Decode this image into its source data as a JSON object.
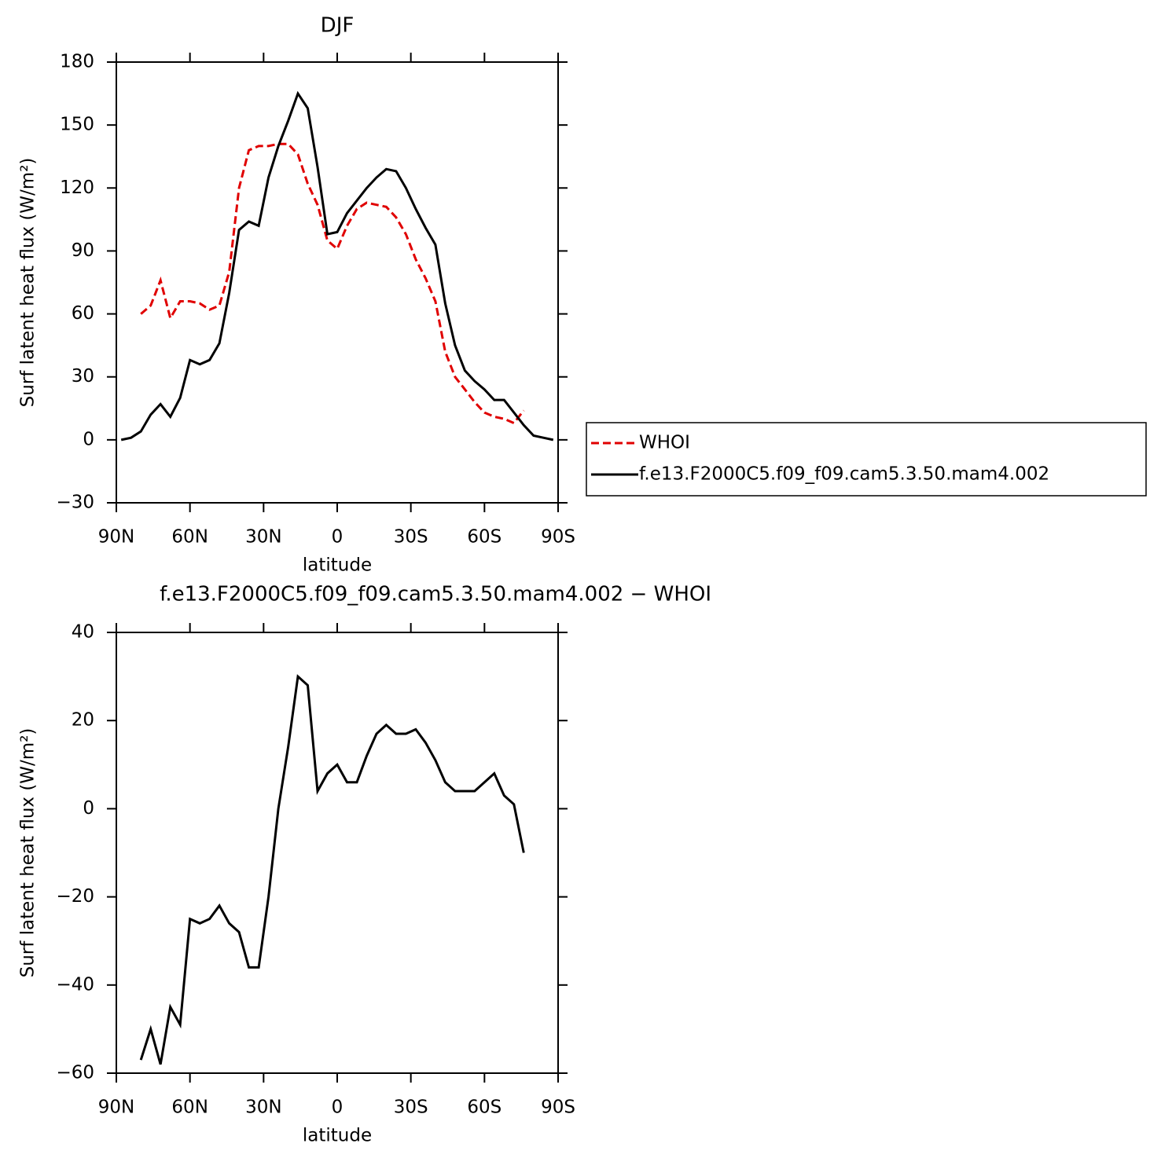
{
  "chart_data": [
    {
      "type": "line",
      "title": "DJF",
      "x_label": "latitude",
      "y_label": "Surf latent heat flux (W/m²)",
      "x": [
        88,
        84,
        80,
        76,
        72,
        68,
        64,
        60,
        56,
        52,
        48,
        44,
        40,
        36,
        32,
        28,
        24,
        20,
        16,
        12,
        8,
        4,
        0,
        -4,
        -8,
        -12,
        -16,
        -20,
        -24,
        -28,
        -32,
        -36,
        -40,
        -44,
        -48,
        -52,
        -56,
        -60,
        -64,
        -68,
        -72,
        -76,
        -80,
        -84,
        -88
      ],
      "series": [
        {
          "name": "WHOI",
          "color": "#e00000",
          "dash": true,
          "values": [
            null,
            null,
            60,
            64,
            76,
            58,
            66,
            66,
            65,
            62,
            64,
            80,
            120,
            138,
            140,
            140,
            141,
            141,
            136,
            122,
            112,
            95,
            91,
            102,
            110,
            113,
            112,
            111,
            106,
            98,
            86,
            77,
            66,
            42,
            30,
            24,
            18,
            13,
            11,
            10,
            8,
            14,
            null,
            null,
            null
          ]
        },
        {
          "name": "f.e13.F2000C5.f09_f09.cam5.3.50.mam4.002",
          "color": "#000000",
          "dash": false,
          "values": [
            0,
            1,
            4,
            12,
            17,
            11,
            20,
            38,
            36,
            38,
            46,
            70,
            100,
            104,
            102,
            125,
            140,
            152,
            165,
            158,
            130,
            98,
            99,
            108,
            114,
            120,
            125,
            129,
            128,
            120,
            110,
            101,
            93,
            65,
            45,
            33,
            28,
            24,
            19,
            19,
            13,
            7,
            2,
            1,
            0
          ]
        }
      ],
      "xlim": [
        90,
        -90
      ],
      "xticks": [
        {
          "value": 90,
          "label": "90N"
        },
        {
          "value": 60,
          "label": "60N"
        },
        {
          "value": 30,
          "label": "30N"
        },
        0,
        {
          "value": -30,
          "label": "30S"
        },
        {
          "value": -60,
          "label": "60S"
        },
        {
          "value": -90,
          "label": "90S"
        }
      ],
      "ylim": [
        -30,
        180
      ],
      "yticks": [
        {
          "value": -30,
          "label": "−30"
        },
        0,
        30,
        60,
        90,
        120,
        150,
        180
      ],
      "legend": "right"
    },
    {
      "type": "line",
      "title": "f.e13.F2000C5.f09_f09.cam5.3.50.mam4.002 − WHOI",
      "x_label": "latitude",
      "y_label": "Surf latent heat flux (W/m²)",
      "x": [
        80,
        76,
        72,
        68,
        64,
        60,
        56,
        52,
        48,
        44,
        40,
        36,
        32,
        28,
        24,
        20,
        16,
        12,
        8,
        4,
        0,
        -4,
        -8,
        -12,
        -16,
        -20,
        -24,
        -28,
        -32,
        -36,
        -40,
        -44,
        -48,
        -52,
        -56,
        -60,
        -64,
        -68,
        -72,
        -76
      ],
      "series": [
        {
          "color": "#000000",
          "dash": false,
          "values": [
            -57,
            -50,
            -58,
            -45,
            -49,
            -25,
            -26,
            -25,
            -22,
            -26,
            -28,
            -36,
            -36,
            -20,
            0,
            14,
            30,
            28,
            4,
            8,
            10,
            6,
            6,
            12,
            17,
            19,
            17,
            17,
            18,
            15,
            11,
            6,
            4,
            4,
            4,
            6,
            8,
            3,
            1,
            -10
          ]
        }
      ],
      "xlim": [
        90,
        -90
      ],
      "xticks": [
        {
          "value": 90,
          "label": "90N"
        },
        {
          "value": 60,
          "label": "60N"
        },
        {
          "value": 30,
          "label": "30N"
        },
        0,
        {
          "value": -30,
          "label": "30S"
        },
        {
          "value": -60,
          "label": "60S"
        },
        {
          "value": -90,
          "label": "90S"
        }
      ],
      "ylim": [
        -60,
        40
      ],
      "yticks": [
        {
          "value": -60,
          "label": "−60"
        },
        {
          "value": -40,
          "label": "−40"
        },
        {
          "value": -20,
          "label": "−20"
        },
        0,
        20,
        40
      ]
    }
  ]
}
